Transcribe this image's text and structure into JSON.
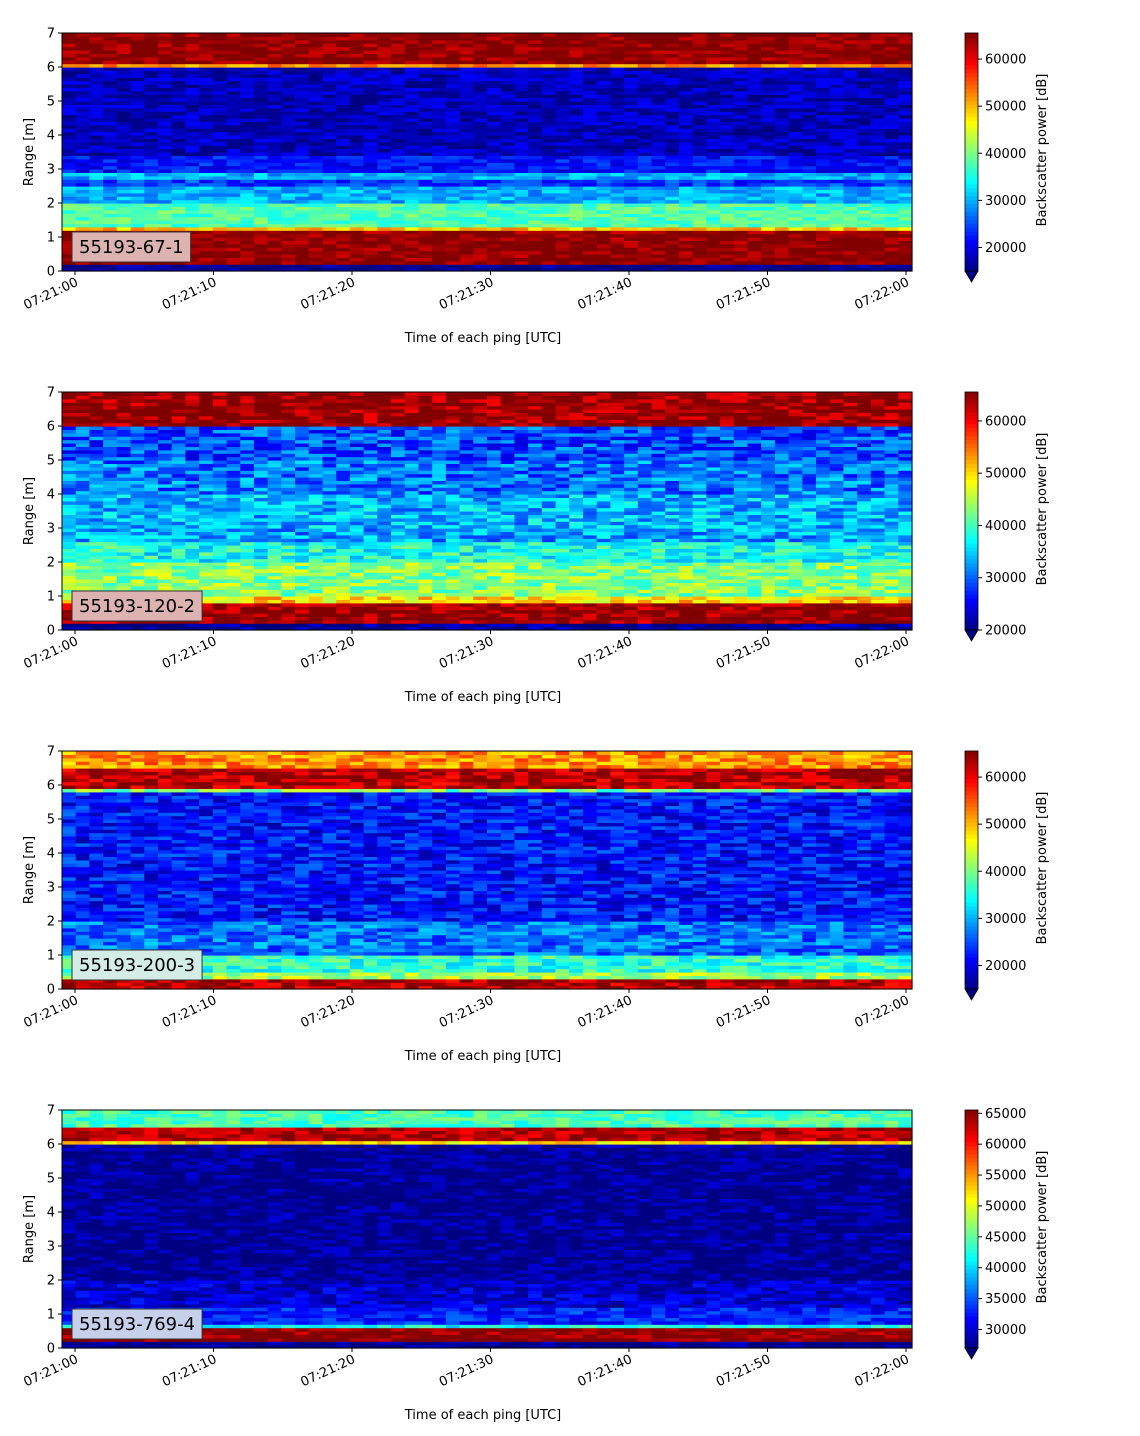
{
  "chart_data": [
    {
      "type": "heatmap",
      "panel_label": "55193-67-1",
      "label_bg": "#dcb3b0",
      "xlabel": "Time of each ping [UTC]",
      "ylabel": "Range [m]",
      "x_ticks": [
        "07:21:00",
        "07:21:10",
        "07:21:20",
        "07:21:30",
        "07:21:40",
        "07:21:50",
        "07:22:00"
      ],
      "x_range": [
        "07:21:00",
        "07:22:00"
      ],
      "y_ticks": [
        0,
        1,
        2,
        3,
        4,
        5,
        6,
        7
      ],
      "ylim": [
        0,
        7
      ],
      "colormap": "jet",
      "colorbar_label": "Backscatter power [dB]",
      "colorbar_ticks": [
        20000,
        30000,
        40000,
        50000,
        60000
      ],
      "colorbar_range": [
        15000,
        65535
      ],
      "colorbar_extend": "min",
      "profile": [
        {
          "range": [
            0.2,
            1.2
          ],
          "value": 65000
        },
        {
          "range": [
            1.2,
            1.35
          ],
          "value": 50000
        },
        {
          "range": [
            1.35,
            2.0
          ],
          "value": 38000
        },
        {
          "range": [
            2.0,
            2.5
          ],
          "value": 30000
        },
        {
          "range": [
            2.5,
            2.7
          ],
          "value": 24000
        },
        {
          "range": [
            2.7,
            2.95
          ],
          "value": 30000
        },
        {
          "range": [
            2.95,
            3.4
          ],
          "value": 22000
        },
        {
          "range": [
            3.4,
            6.0
          ],
          "value": 18000
        },
        {
          "range": [
            6.0,
            6.05
          ],
          "value": 52000
        },
        {
          "range": [
            6.05,
            7.0
          ],
          "value": 65000
        }
      ],
      "noise": 3500
    },
    {
      "type": "heatmap",
      "panel_label": "55193-120-2",
      "label_bg": "#dcb3b0",
      "xlabel": "Time of each ping [UTC]",
      "ylabel": "Range [m]",
      "x_ticks": [
        "07:21:00",
        "07:21:10",
        "07:21:20",
        "07:21:30",
        "07:21:40",
        "07:21:50",
        "07:22:00"
      ],
      "x_range": [
        "07:21:00",
        "07:22:00"
      ],
      "y_ticks": [
        0,
        1,
        2,
        3,
        4,
        5,
        6,
        7
      ],
      "ylim": [
        0,
        7
      ],
      "colormap": "jet",
      "colorbar_label": "Backscatter power [dB]",
      "colorbar_ticks": [
        20000,
        30000,
        40000,
        50000,
        60000
      ],
      "colorbar_range": [
        20000,
        65535
      ],
      "colorbar_extend": "min",
      "profile": [
        {
          "range": [
            0.2,
            0.85
          ],
          "value": 65000
        },
        {
          "range": [
            0.85,
            1.0
          ],
          "value": 50000
        },
        {
          "range": [
            1.0,
            2.0
          ],
          "value": 43000
        },
        {
          "range": [
            2.0,
            2.6
          ],
          "value": 38000
        },
        {
          "range": [
            2.6,
            3.0
          ],
          "value": 33000
        },
        {
          "range": [
            3.0,
            4.0
          ],
          "value": 34000
        },
        {
          "range": [
            4.0,
            5.0
          ],
          "value": 31000
        },
        {
          "range": [
            5.0,
            5.95
          ],
          "value": 29000
        },
        {
          "range": [
            5.95,
            6.0
          ],
          "value": 50000
        },
        {
          "range": [
            6.0,
            7.0
          ],
          "value": 65000
        }
      ],
      "noise": 5000
    },
    {
      "type": "heatmap",
      "panel_label": "55193-200-3",
      "label_bg": "#d4ece6",
      "xlabel": "Time of each ping [UTC]",
      "ylabel": "Range [m]",
      "x_ticks": [
        "07:21:00",
        "07:21:10",
        "07:21:20",
        "07:21:30",
        "07:21:40",
        "07:21:50",
        "07:22:00"
      ],
      "x_range": [
        "07:21:00",
        "07:22:00"
      ],
      "y_ticks": [
        0,
        1,
        2,
        3,
        4,
        5,
        6,
        7
      ],
      "ylim": [
        0,
        7
      ],
      "colormap": "jet",
      "colorbar_label": "Backscatter power [dB]",
      "colorbar_ticks": [
        20000,
        30000,
        40000,
        50000,
        60000
      ],
      "colorbar_range": [
        15000,
        65535
      ],
      "colorbar_extend": "min",
      "profile": [
        {
          "range": [
            0.0,
            0.3
          ],
          "value": 63000
        },
        {
          "range": [
            0.3,
            0.55
          ],
          "value": 42000
        },
        {
          "range": [
            0.55,
            1.0
          ],
          "value": 36000
        },
        {
          "range": [
            1.0,
            2.0
          ],
          "value": 27000
        },
        {
          "range": [
            2.0,
            5.8
          ],
          "value": 22000
        },
        {
          "range": [
            5.8,
            5.85
          ],
          "value": 40000
        },
        {
          "range": [
            5.85,
            6.5
          ],
          "value": 63000
        },
        {
          "range": [
            6.5,
            7.0
          ],
          "value": 52000
        }
      ],
      "noise": 5000
    },
    {
      "type": "heatmap",
      "panel_label": "55193-769-4",
      "label_bg": "#c6d0ea",
      "xlabel": "Time of each ping [UTC]",
      "ylabel": "Range [m]",
      "x_ticks": [
        "07:21:00",
        "07:21:10",
        "07:21:20",
        "07:21:30",
        "07:21:40",
        "07:21:50",
        "07:22:00"
      ],
      "x_range": [
        "07:21:00",
        "07:22:00"
      ],
      "y_ticks": [
        0,
        1,
        2,
        3,
        4,
        5,
        6,
        7
      ],
      "ylim": [
        0,
        7
      ],
      "colormap": "jet",
      "colorbar_label": "Backscatter power [dB]",
      "colorbar_ticks": [
        30000,
        35000,
        40000,
        45000,
        50000,
        55000,
        60000,
        65000
      ],
      "colorbar_range": [
        27000,
        65535
      ],
      "colorbar_extend": "min",
      "profile": [
        {
          "range": [
            0.2,
            0.65
          ],
          "value": 65000
        },
        {
          "range": [
            0.65,
            0.75
          ],
          "value": 42000
        },
        {
          "range": [
            0.75,
            1.2
          ],
          "value": 33000
        },
        {
          "range": [
            1.2,
            2.0
          ],
          "value": 30000
        },
        {
          "range": [
            2.0,
            6.0
          ],
          "value": 27500
        },
        {
          "range": [
            6.0,
            6.05
          ],
          "value": 52000
        },
        {
          "range": [
            6.05,
            6.5
          ],
          "value": 63500
        },
        {
          "range": [
            6.5,
            7.0
          ],
          "value": 44000
        }
      ],
      "noise": 3000
    }
  ]
}
